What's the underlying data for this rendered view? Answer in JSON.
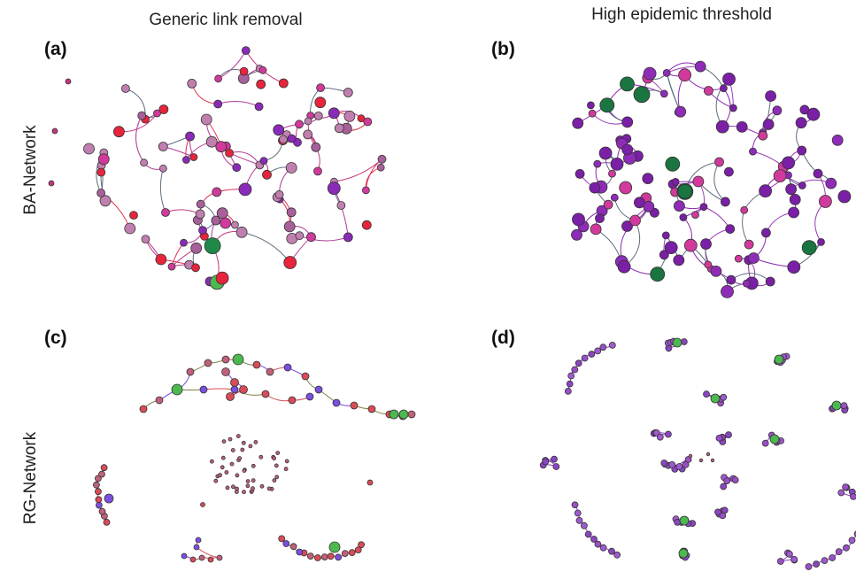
{
  "columns": [
    "Generic link removal",
    "High epidemic threshold"
  ],
  "rows": [
    "BA-Network",
    "RG-Network"
  ],
  "panels": [
    "(a)",
    "(b)",
    "(c)",
    "(d)"
  ]
}
